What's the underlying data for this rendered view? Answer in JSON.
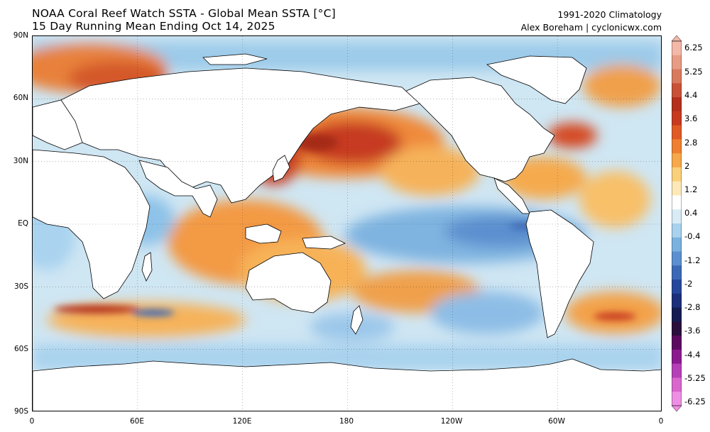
{
  "header": {
    "title_line1": "NOAA Coral Reef Watch SSTA - Global Mean SSTA [°C]",
    "title_line2": "15 Day Running Mean Ending Oct 14, 2025",
    "climatology": "1991-2020 Climatology",
    "credit": "Alex Boreham | cyclonicwx.com"
  },
  "axes": {
    "lat_labels": [
      "90N",
      "60N",
      "30N",
      "EQ",
      "30S",
      "60S",
      "90S"
    ],
    "lat_values": [
      90,
      60,
      30,
      0,
      -30,
      -60,
      -90
    ],
    "lon_labels": [
      "0",
      "60E",
      "120E",
      "180",
      "120W",
      "60W",
      "0"
    ],
    "lon_values": [
      0,
      60,
      120,
      180,
      240,
      300,
      360
    ]
  },
  "colorbar": {
    "tick_labels": [
      "6.25",
      "5.25",
      "4.4",
      "3.6",
      "2.8",
      "2",
      "1.2",
      "0.4",
      "-0.4",
      "-1.2",
      "-2",
      "-2.8",
      "-3.6",
      "-4.4",
      "-5.25",
      "-6.25"
    ],
    "colors": [
      "#f4b8a8",
      "#e79c85",
      "#d97a5e",
      "#c95136",
      "#b4301d",
      "#c83a1f",
      "#e05a26",
      "#ef8031",
      "#f6a84a",
      "#fbd07a",
      "#fde9b8",
      "#ffffff",
      "#d9ecf6",
      "#a8d2ee",
      "#7ab2df",
      "#5b8fcf",
      "#3c69b6",
      "#27479c",
      "#1b2f7a",
      "#141c52",
      "#2a0f3c",
      "#5c0a61",
      "#8b1a8f",
      "#b53fb6",
      "#d866cd",
      "#ee8fe3"
    ],
    "min": -6.25,
    "max": 6.25
  }
}
